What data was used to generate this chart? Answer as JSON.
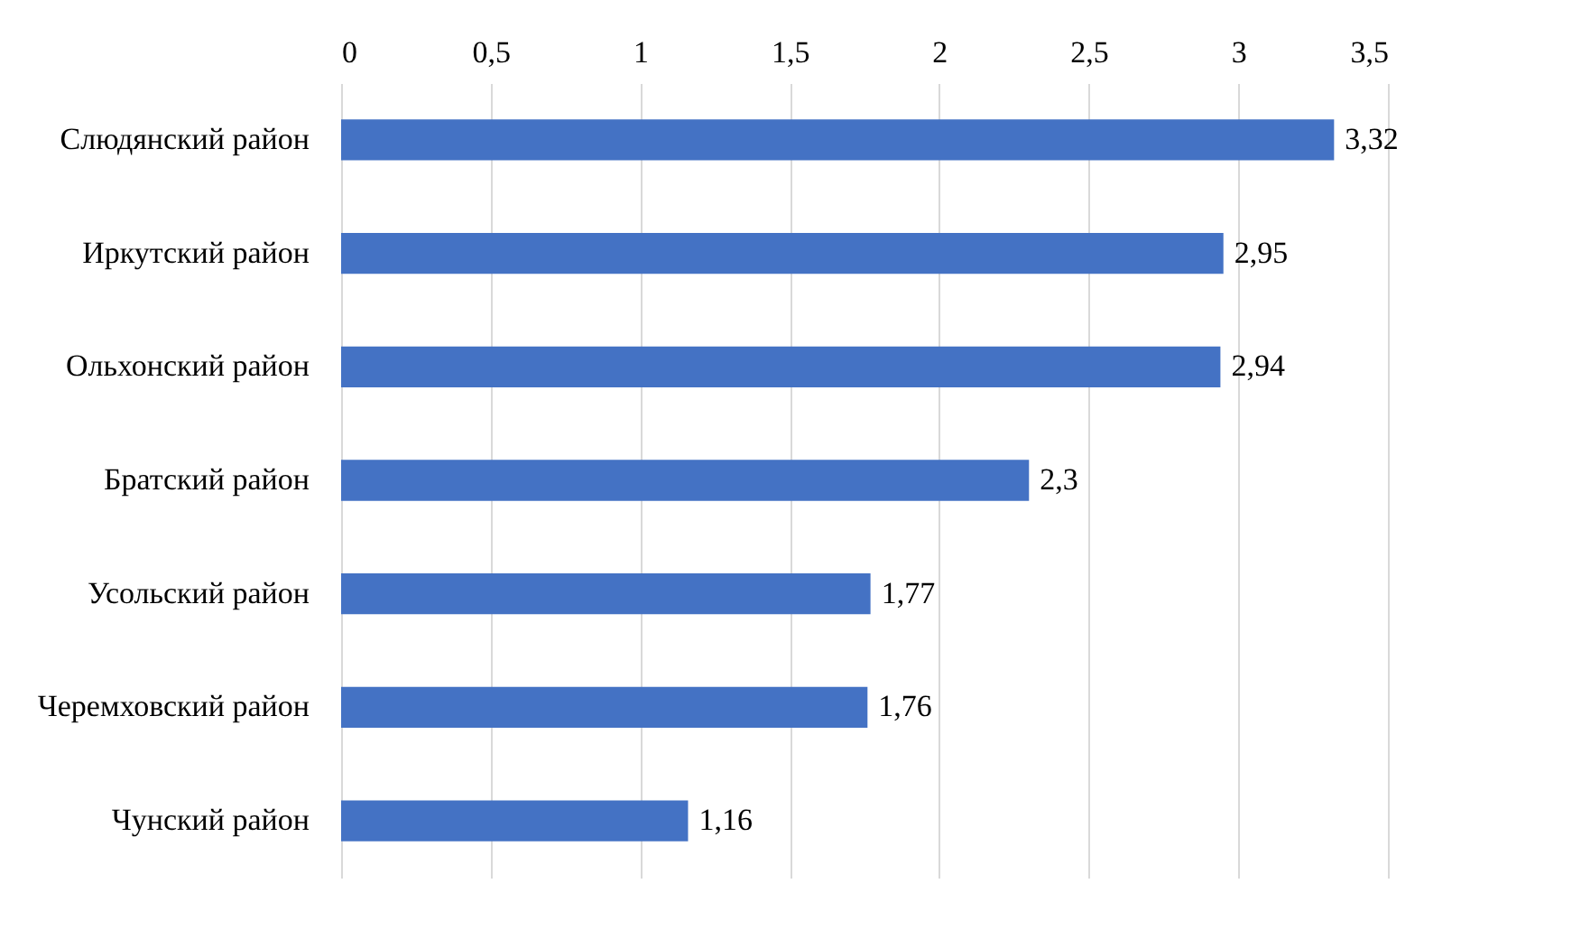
{
  "chart_data": {
    "type": "bar",
    "orientation": "horizontal",
    "categories": [
      "Слюдянский район",
      "Иркутский район",
      "Ольхонский район",
      "Братский район",
      "Усольский район",
      "Черемховский район",
      "Чунский район"
    ],
    "values": [
      3.32,
      2.95,
      2.94,
      2.3,
      1.77,
      1.76,
      1.16
    ],
    "value_labels": [
      "3,32",
      "2,95",
      "2,94",
      "2,3",
      "1,77",
      "1,76",
      "1,16"
    ],
    "color": "#4472c4",
    "xlim": [
      0,
      3.5
    ],
    "xticks": [
      0,
      {
        "value": 0.5,
        "label": "0,5"
      },
      1,
      {
        "value": 1.5,
        "label": "1,5"
      },
      2,
      {
        "value": 2.5,
        "label": "2,5"
      },
      3,
      {
        "value": 3.5,
        "label": "3,5"
      }
    ],
    "grid": true
  }
}
